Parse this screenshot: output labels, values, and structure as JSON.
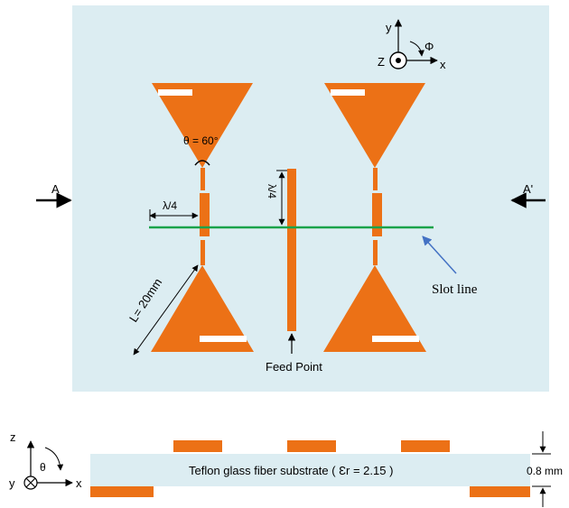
{
  "top_view": {
    "axis_y": "y",
    "axis_x": "x",
    "axis_z": "Z",
    "phi": "Φ",
    "angle_label": "θ = 60°",
    "quarter_wave_h": "λ/4",
    "quarter_wave_v": "λ/4",
    "length_label": "L= 20mm",
    "section_left": "A",
    "section_right": "A'",
    "slot_line": "Slot line",
    "feed_point": "Feed Point"
  },
  "side_view": {
    "axis_z": "z",
    "axis_y": "y",
    "axis_x": "x",
    "theta": "θ",
    "substrate_label": "Teflon glass fiber substrate ( Ɛr = 2.15 )",
    "thickness": "0.8 mm"
  },
  "colors": {
    "background_panel": "#dcedf2",
    "patch": "#ec7116",
    "slot_line": "#1aa34a",
    "pointer_arrow": "#4472c4",
    "substrate": "#dcedf2"
  }
}
